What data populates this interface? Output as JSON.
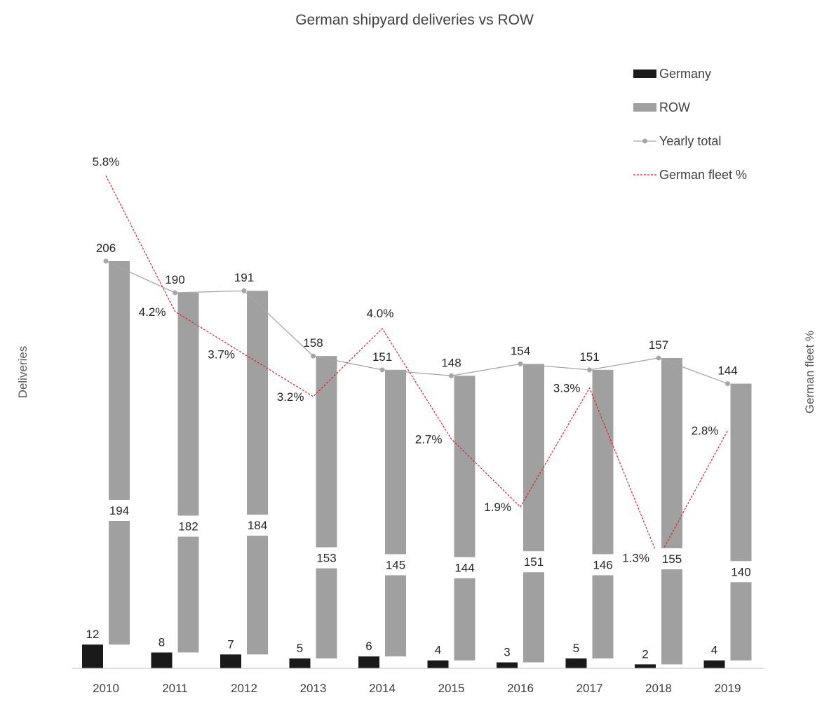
{
  "chart_data": {
    "type": "bar",
    "title": "German shipyard deliveries vs ROW",
    "ylabel": "Deliveries",
    "y2label": "German fleet %",
    "categories": [
      "2010",
      "2011",
      "2012",
      "2013",
      "2014",
      "2015",
      "2016",
      "2017",
      "2018",
      "2019"
    ],
    "legend_position": "top-right",
    "grid": false,
    "ylim": [
      0,
      206
    ],
    "y2lim": [
      0,
      6.7
    ],
    "series": [
      {
        "name": "Germany",
        "kind": "bar",
        "color": "#1a1a1a",
        "values": [
          12,
          8,
          7,
          5,
          6,
          4,
          3,
          5,
          2,
          4
        ],
        "labels": [
          "12",
          "8",
          "7",
          "5",
          "6",
          "4",
          "3",
          "5",
          "2",
          "4"
        ]
      },
      {
        "name": "ROW",
        "kind": "bar",
        "color": "#a0a0a0",
        "values": [
          194,
          182,
          184,
          153,
          145,
          144,
          151,
          146,
          155,
          140
        ],
        "labels": [
          "194",
          "182",
          "184",
          "153",
          "145",
          "144",
          "151",
          "146",
          "155",
          "140"
        ]
      },
      {
        "name": "Yearly total",
        "kind": "line",
        "color": "#a6a6a6",
        "values": [
          206,
          190,
          191,
          158,
          151,
          148,
          154,
          151,
          157,
          144
        ],
        "labels": [
          "206",
          "190",
          "191",
          "158",
          "151",
          "148",
          "154",
          "151",
          "157",
          "144"
        ]
      },
      {
        "name": "German fleet %",
        "kind": "line-dashed",
        "axis": "secondary",
        "color": "#e0202a",
        "values": [
          5.8,
          4.2,
          3.7,
          3.2,
          4.0,
          2.7,
          1.9,
          3.3,
          1.3,
          2.8
        ],
        "labels": [
          "5.8%",
          "4.2%",
          "3.7%",
          "3.2%",
          "4.0%",
          "2.7%",
          "1.9%",
          "3.3%",
          "1.3%",
          "2.8%"
        ]
      }
    ]
  }
}
